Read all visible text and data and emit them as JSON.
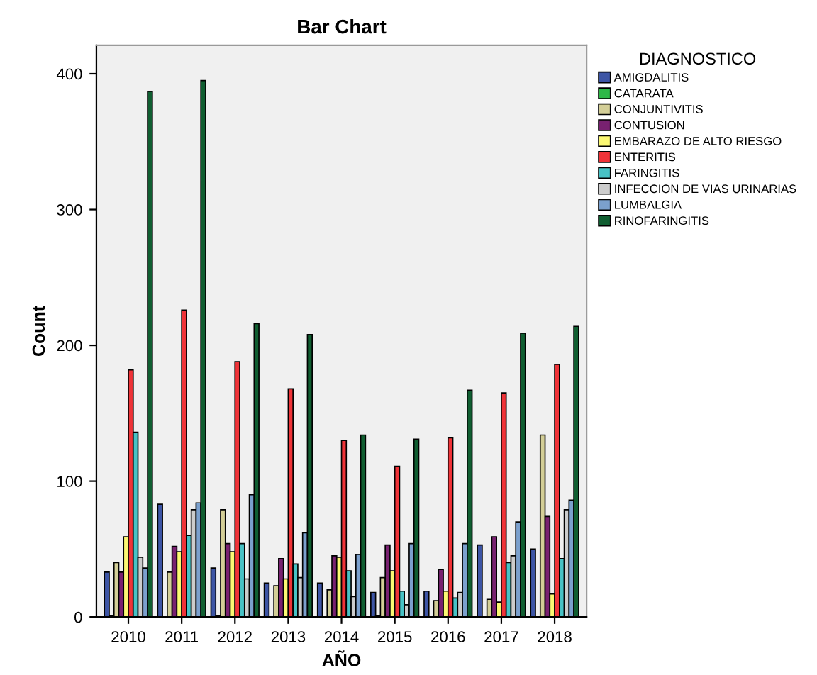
{
  "chart_data": {
    "type": "bar",
    "title": "Bar Chart",
    "xlabel": "AÑO",
    "ylabel": "Count",
    "legend_title": "DIAGNOSTICO",
    "categories": [
      "2010",
      "2011",
      "2012",
      "2013",
      "2014",
      "2015",
      "2016",
      "2017",
      "2018"
    ],
    "series": [
      {
        "name": "AMIGDALITIS",
        "color": "#3d55a5",
        "values": [
          33,
          83,
          36,
          25,
          25,
          18,
          19,
          53,
          50
        ]
      },
      {
        "name": "CATARATA",
        "color": "#2eb848",
        "values": [
          1,
          null,
          1,
          null,
          null,
          1,
          null,
          null,
          null
        ]
      },
      {
        "name": "CONJUNTIVITIS",
        "color": "#d3ce97",
        "values": [
          40,
          33,
          79,
          23,
          20,
          29,
          12,
          13,
          134
        ]
      },
      {
        "name": "CONTUSION",
        "color": "#782170",
        "values": [
          33,
          52,
          54,
          43,
          45,
          53,
          35,
          59,
          74
        ]
      },
      {
        "name": "EMBARAZO DE ALTO RIESGO",
        "color": "#fbf873",
        "values": [
          59,
          48,
          48,
          28,
          44,
          34,
          19,
          11,
          17
        ]
      },
      {
        "name": "ENTERITIS",
        "color": "#ef3338",
        "values": [
          182,
          226,
          188,
          168,
          130,
          111,
          132,
          165,
          186
        ]
      },
      {
        "name": "FARINGITIS",
        "color": "#48c2c5",
        "values": [
          136,
          60,
          54,
          39,
          34,
          19,
          14,
          40,
          43
        ]
      },
      {
        "name": "INFECCION DE VIAS URINARIAS",
        "color": "#cccccc",
        "values": [
          44,
          79,
          28,
          29,
          15,
          9,
          18,
          45,
          79
        ]
      },
      {
        "name": "LUMBALGIA",
        "color": "#7ba0cd",
        "values": [
          36,
          84,
          90,
          62,
          46,
          54,
          54,
          70,
          86
        ]
      },
      {
        "name": "RINOFARINGITIS",
        "color": "#105e31",
        "values": [
          387,
          395,
          216,
          208,
          134,
          131,
          167,
          209,
          214
        ]
      }
    ],
    "ylim": [
      0,
      421
    ],
    "yticks": [
      0,
      100,
      200,
      300,
      400
    ],
    "grid": false,
    "legend": "right"
  }
}
